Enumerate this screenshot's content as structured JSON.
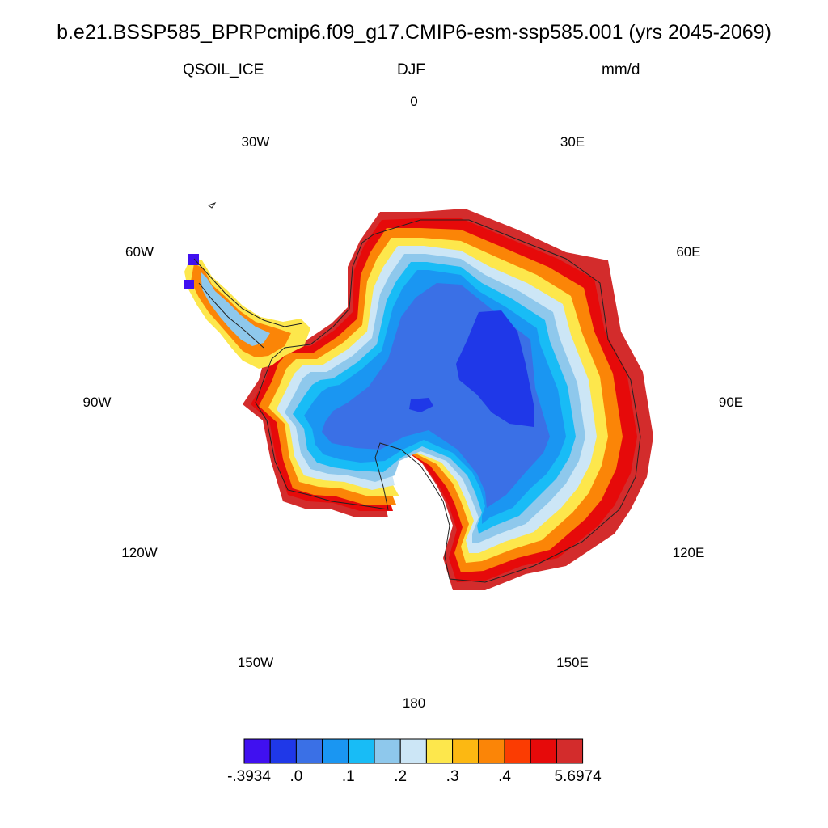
{
  "header": {
    "title": "b.e21.BSSP585_BPRPcmip6.f09_g17.CMIP6-esm-ssp585.001 (yrs 2045-2069)",
    "variable": "QSOIL_ICE",
    "season": "DJF",
    "units": "mm/d"
  },
  "longitude_labels": [
    {
      "id": "lon-0",
      "text": "0",
      "angle": 0
    },
    {
      "id": "lon-30e",
      "text": "30E",
      "angle": 30
    },
    {
      "id": "lon-60e",
      "text": "60E",
      "angle": 60
    },
    {
      "id": "lon-90e",
      "text": "90E",
      "angle": 90
    },
    {
      "id": "lon-120e",
      "text": "120E",
      "angle": 120
    },
    {
      "id": "lon-150e",
      "text": "150E",
      "angle": 150
    },
    {
      "id": "lon-180",
      "text": "180",
      "angle": 180
    },
    {
      "id": "lon-150w",
      "text": "150W",
      "angle": 210
    },
    {
      "id": "lon-120w",
      "text": "120W",
      "angle": 240
    },
    {
      "id": "lon-90w",
      "text": "90W",
      "angle": 270
    },
    {
      "id": "lon-60w",
      "text": "60W",
      "angle": 300
    },
    {
      "id": "lon-30w",
      "text": "30W",
      "angle": 330
    }
  ],
  "colorbar": {
    "colors": [
      "#4010f0",
      "#1f38e8",
      "#3a70e6",
      "#1a96f2",
      "#18bcf6",
      "#8ec8ec",
      "#cce6f6",
      "#fde74c",
      "#fcb812",
      "#fb8507",
      "#fb3c02",
      "#e60a0a",
      "#d32c2c"
    ],
    "labels": [
      {
        "text": "-.3934",
        "index": 0
      },
      {
        "text": ".0",
        "index": 2
      },
      {
        "text": ".1",
        "index": 4
      },
      {
        "text": ".2",
        "index": 6
      },
      {
        "text": ".3",
        "index": 8
      },
      {
        "text": ".4",
        "index": 10
      },
      {
        "text": "5.6974",
        "index": 13
      }
    ]
  }
}
